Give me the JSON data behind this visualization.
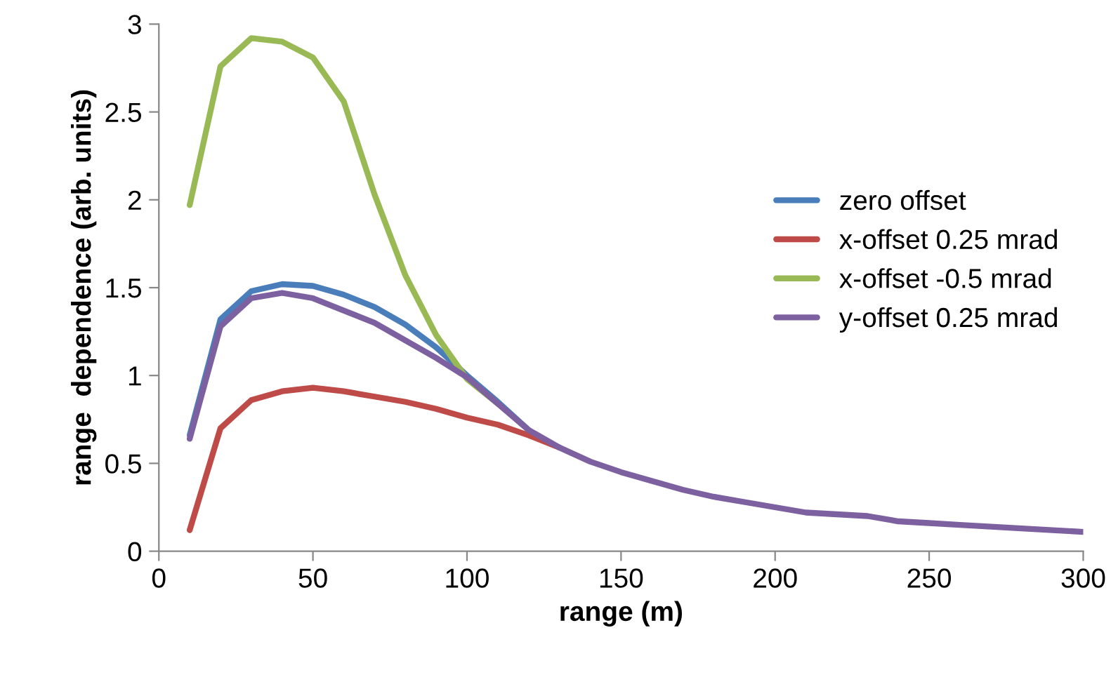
{
  "chart_data": {
    "type": "line",
    "xlabel": "range (m)",
    "ylabel": "range  dependence (arb. units)",
    "x": [
      10,
      20,
      30,
      40,
      50,
      60,
      70,
      80,
      90,
      100,
      110,
      120,
      130,
      140,
      150,
      160,
      170,
      180,
      190,
      200,
      210,
      220,
      230,
      240,
      250,
      260,
      270,
      280,
      290,
      300
    ],
    "series": [
      {
        "name": "zero offset",
        "color": "#4a7ebb",
        "values": [
          0.66,
          1.32,
          1.48,
          1.52,
          1.51,
          1.46,
          1.39,
          1.29,
          1.16,
          1.0,
          0.85,
          0.69,
          null,
          null,
          null,
          null,
          null,
          null,
          null,
          null,
          null,
          null,
          null,
          null,
          null,
          null,
          null,
          null,
          null,
          null
        ]
      },
      {
        "name": "x-offset 0.25 mrad",
        "color": "#be4b48",
        "values": [
          0.12,
          0.7,
          0.86,
          0.91,
          0.93,
          0.91,
          0.88,
          0.85,
          0.81,
          0.76,
          0.72,
          0.66,
          0.59,
          null,
          null,
          null,
          null,
          null,
          null,
          null,
          null,
          null,
          null,
          null,
          null,
          null,
          null,
          null,
          null,
          null
        ]
      },
      {
        "name": "x-offset -0.5 mrad",
        "color": "#98b954",
        "values": [
          1.97,
          2.76,
          2.92,
          2.9,
          2.81,
          2.56,
          2.03,
          1.57,
          1.23,
          0.98,
          0.84,
          null,
          null,
          null,
          null,
          null,
          null,
          null,
          null,
          null,
          null,
          null,
          null,
          null,
          null,
          null,
          null,
          null,
          null,
          null
        ]
      },
      {
        "name": "y-offset 0.25 mrad",
        "color": "#7d60a0",
        "values": [
          0.64,
          1.28,
          1.44,
          1.47,
          1.44,
          1.37,
          1.3,
          1.2,
          1.1,
          0.99,
          0.84,
          0.69,
          0.59,
          0.51,
          0.45,
          0.4,
          0.35,
          0.31,
          0.28,
          0.25,
          0.22,
          0.21,
          0.2,
          0.17,
          0.16,
          0.15,
          0.14,
          0.13,
          0.12,
          0.11
        ]
      }
    ],
    "xlim": [
      0,
      300
    ],
    "xticks": [
      0,
      50,
      100,
      150,
      200,
      250,
      300
    ],
    "ylim": [
      0,
      3
    ],
    "yticks": [
      0,
      0.5,
      1,
      1.5,
      2,
      2.5,
      3
    ],
    "legend": "center right",
    "grid": false,
    "marker": "none",
    "line_style": "solid"
  }
}
